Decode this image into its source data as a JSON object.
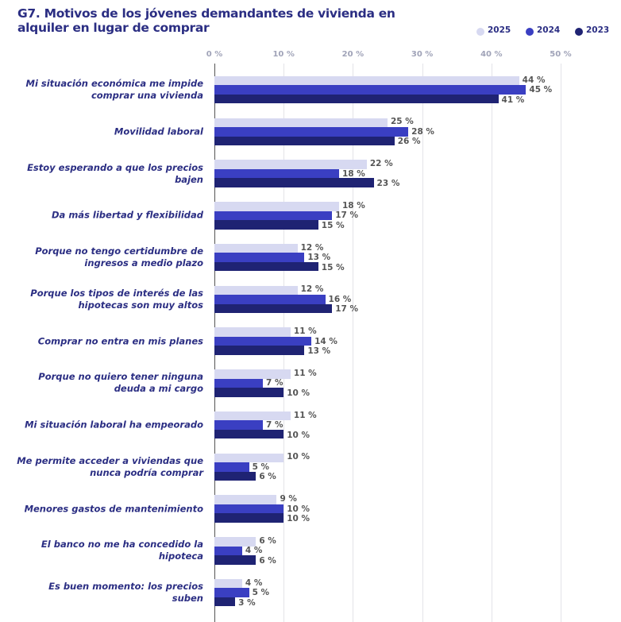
{
  "chart_data": {
    "type": "bar",
    "orientation": "horizontal",
    "title": "G7. Motivos de los jóvenes demandantes de vivienda en alquiler en lugar de comprar",
    "categories": [
      "Mi situación económica me impide comprar una vivienda",
      "Movilidad laboral",
      "Estoy esperando a que los precios bajen",
      "Da más libertad y flexibilidad",
      "Porque no tengo certidumbre de ingresos a medio plazo",
      "Porque los tipos de interés de las hipotecas son muy altos",
      "Comprar no entra en mis planes",
      "Porque no quiero tener ninguna deuda a mi cargo",
      "Mi situación laboral ha empeorado",
      "Me permite acceder a viviendas que nunca podría comprar",
      "Menores gastos de mantenimiento",
      "El banco no me ha concedido la hipoteca",
      "Es buen momento: los precios suben"
    ],
    "series": [
      {
        "name": "2025",
        "color": "#d7d9f1",
        "values": [
          44,
          25,
          22,
          18,
          12,
          12,
          11,
          11,
          11,
          10,
          9,
          6,
          4
        ],
        "value_labels": [
          "44 %",
          "25 %",
          "22 %",
          "18 %",
          "12 %",
          "12 %",
          "11 %",
          "11 %",
          "11 %",
          "10 %",
          "9 %",
          "6 %",
          "4 %"
        ]
      },
      {
        "name": "2024",
        "color": "#3a3fc2",
        "values": [
          45,
          28,
          18,
          17,
          13,
          16,
          14,
          7,
          7,
          5,
          10,
          4,
          5
        ],
        "value_labels": [
          "45 %",
          "28 %",
          "18 %",
          "17 %",
          "13 %",
          "16 %",
          "14 %",
          "7 %",
          "7 %",
          "5 %",
          "10 %",
          "4 %",
          "5 %"
        ]
      },
      {
        "name": "2023",
        "color": "#1f2373",
        "values": [
          41,
          26,
          23,
          15,
          15,
          17,
          13,
          10,
          10,
          6,
          10,
          6,
          3
        ],
        "value_labels": [
          "41 %",
          "26 %",
          "23 %",
          "15 %",
          "15 %",
          "17 %",
          "13 %",
          "10 %",
          "10 %",
          "6 %",
          "10 %",
          "6 %",
          "3 %"
        ]
      }
    ],
    "xlim": [
      0,
      50
    ],
    "xticks": [
      {
        "value": 0,
        "label": "0 %"
      },
      {
        "value": 10,
        "label": "10 %"
      },
      {
        "value": 20,
        "label": "20 %"
      },
      {
        "value": 30,
        "label": "30 %"
      },
      {
        "value": 40,
        "label": "40 %"
      },
      {
        "value": 50,
        "label": "50 %"
      }
    ],
    "grid": true,
    "legend_position": "top-right"
  }
}
